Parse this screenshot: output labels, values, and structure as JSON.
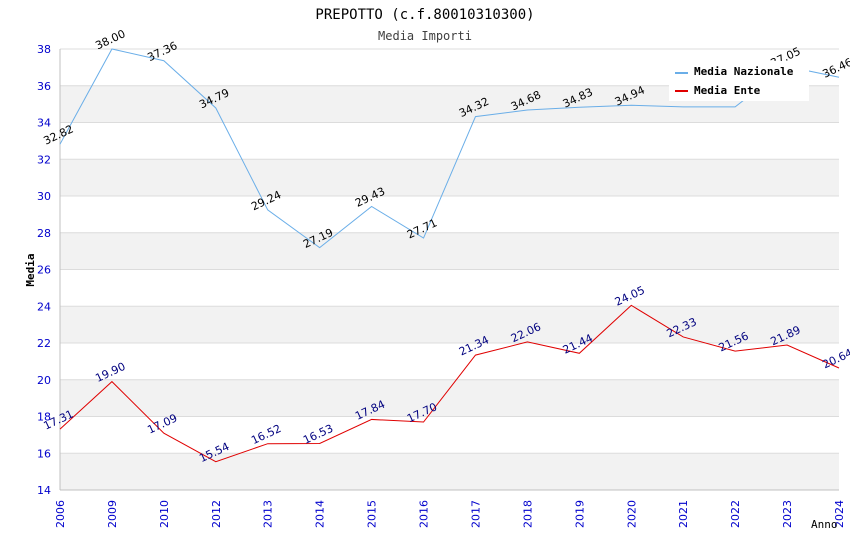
{
  "chart_data": {
    "type": "line",
    "title": "PREPOTTO (c.f.80010310300)",
    "subtitle": "Media Importi",
    "xlabel": "Anno",
    "ylabel": "Media",
    "ylim": [
      14,
      38
    ],
    "yticks": [
      "14",
      "16",
      "18",
      "20",
      "22",
      "24",
      "26",
      "28",
      "30",
      "32",
      "34",
      "36",
      "38"
    ],
    "categories": [
      "2006",
      "2009",
      "2010",
      "2012",
      "2013",
      "2014",
      "2015",
      "2016",
      "2017",
      "2018",
      "2019",
      "2020",
      "2021",
      "2022",
      "2023",
      "2024"
    ],
    "legend_position": "top-right",
    "series": [
      {
        "name": "Media Nazionale",
        "color": "#6aaee8",
        "label_color": "#000000",
        "values": [
          32.82,
          38.0,
          37.36,
          34.79,
          29.24,
          27.19,
          29.43,
          27.71,
          34.32,
          34.68,
          34.83,
          34.94,
          34.85,
          34.85,
          37.05,
          36.46
        ],
        "labels": [
          "32.82",
          "38.00",
          "37.36",
          "34.79",
          "29.24",
          "27.19",
          "29.43",
          "27.71",
          "34.32",
          "34.68",
          "34.83",
          "34.94",
          "",
          "",
          "37.05",
          "36.46"
        ]
      },
      {
        "name": "Media Ente",
        "color": "#e00000",
        "label_color": "#00007f",
        "values": [
          17.31,
          19.9,
          17.09,
          15.54,
          16.52,
          16.53,
          17.84,
          17.7,
          21.34,
          22.06,
          21.44,
          24.05,
          22.33,
          21.56,
          21.89,
          20.64
        ],
        "labels": [
          "17.31",
          "19.90",
          "17.09",
          "15.54",
          "16.52",
          "16.53",
          "17.84",
          "17.70",
          "21.34",
          "22.06",
          "21.44",
          "24.05",
          "22.33",
          "21.56",
          "21.89",
          "20.64"
        ]
      }
    ]
  }
}
